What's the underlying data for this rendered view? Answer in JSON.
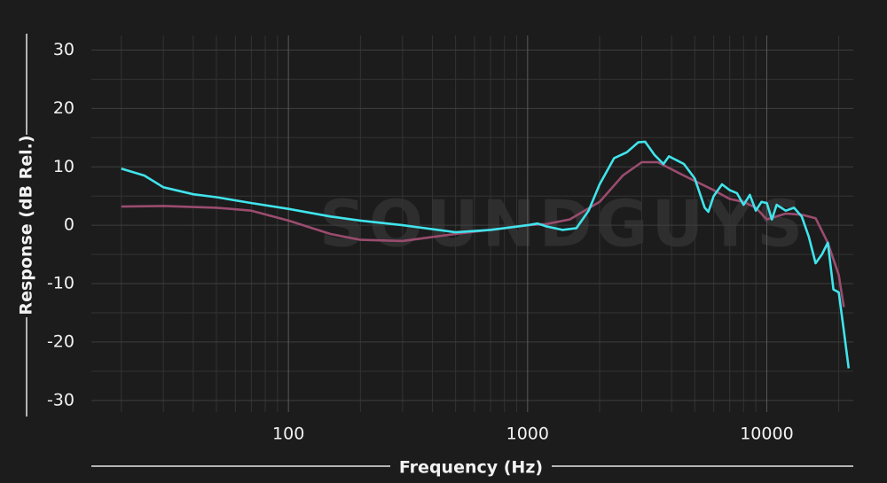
{
  "chart_data": {
    "type": "line",
    "xlabel": "Frequency (Hz)",
    "ylabel": "Response (dB Rel.)",
    "watermark": "SOUNDGUYS",
    "xscale": "log",
    "xlim": [
      15,
      23000
    ],
    "ylim": [
      -32,
      32.5
    ],
    "xticks": [
      100,
      1000,
      10000
    ],
    "x_minor_ticks": [
      20,
      30,
      40,
      50,
      60,
      70,
      80,
      90,
      200,
      300,
      400,
      500,
      600,
      700,
      800,
      900,
      2000,
      3000,
      4000,
      5000,
      6000,
      7000,
      8000,
      9000,
      20000
    ],
    "yticks": [
      30,
      20,
      10,
      0,
      -10,
      -20,
      -30
    ],
    "y_minor_ticks": [
      25,
      15,
      5,
      -5,
      -15,
      -25
    ],
    "grid": true,
    "series": [
      {
        "color": "#9a4c6e",
        "x": [
          20,
          30,
          50,
          70,
          100,
          150,
          200,
          300,
          500,
          800,
          1000,
          1200,
          1500,
          2000,
          2500,
          3000,
          3500,
          4500,
          6000,
          7000,
          8000,
          9000,
          10000,
          12000,
          14000,
          16000,
          18000,
          20000,
          21000
        ],
        "values": [
          3.2,
          3.3,
          3,
          2.5,
          0.8,
          -1.5,
          -2.5,
          -2.7,
          -1.5,
          -0.5,
          0,
          0.2,
          1,
          4,
          8.5,
          10.8,
          10.8,
          8.5,
          6,
          4.5,
          4,
          3,
          1,
          2,
          1.8,
          1.2,
          -3,
          -8.5,
          -14
        ]
      },
      {
        "color": "#40e4ec",
        "x": [
          20,
          25,
          30,
          40,
          50,
          70,
          100,
          150,
          200,
          300,
          500,
          700,
          1000,
          1100,
          1200,
          1400,
          1600,
          1800,
          2000,
          2300,
          2600,
          2900,
          3100,
          3400,
          3700,
          3900,
          4500,
          5000,
          5500,
          5700,
          6000,
          6500,
          7000,
          7500,
          8000,
          8500,
          9000,
          9500,
          10000,
          10500,
          11000,
          12000,
          13000,
          14000,
          15000,
          16000,
          17000,
          18000,
          19000,
          20000,
          21000,
          22000
        ],
        "values": [
          9.7,
          8.5,
          6.5,
          5.3,
          4.8,
          3.8,
          2.8,
          1.5,
          0.8,
          0,
          -1.2,
          -0.8,
          0,
          0.3,
          -0.2,
          -0.8,
          -0.5,
          2.5,
          7,
          11.5,
          12.5,
          14.2,
          14.3,
          12,
          10.5,
          11.8,
          10.5,
          8,
          3,
          2.3,
          5,
          7,
          6,
          5.5,
          3.5,
          5.2,
          2.5,
          4,
          3.8,
          1,
          3.5,
          2.5,
          3,
          1.5,
          -2,
          -6.5,
          -5,
          -3,
          -11,
          -11.5,
          -18,
          -24.5
        ]
      }
    ]
  }
}
